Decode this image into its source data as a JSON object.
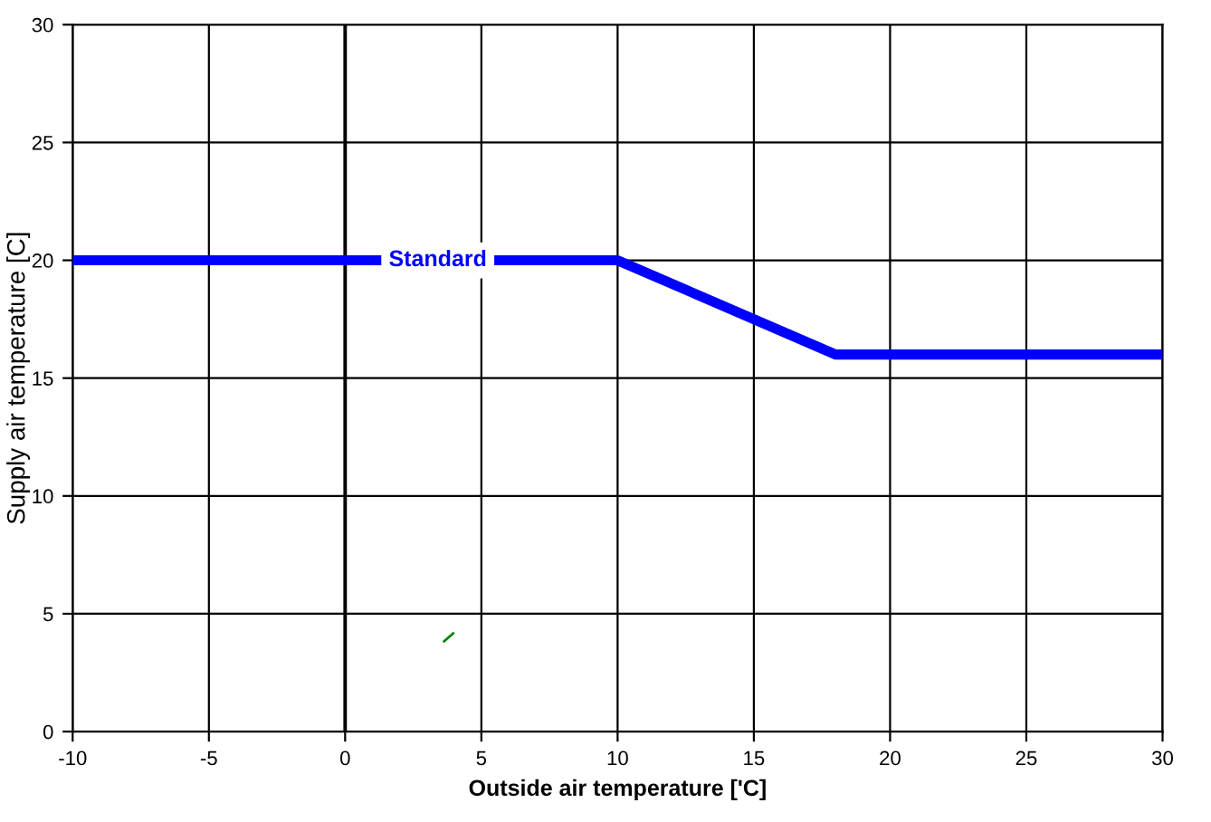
{
  "chart_data": {
    "type": "line",
    "xlabel": "Outside air temperature ['C]",
    "ylabel": "Supply air temperature [C]",
    "series": [
      {
        "x": [
          -10,
          10,
          18,
          30
        ],
        "values": [
          20,
          20,
          16,
          16
        ],
        "color": "#0000ff"
      },
      {
        "x": [
          3.6,
          4.0
        ],
        "values": [
          3.8,
          4.2
        ],
        "color": "#008000"
      }
    ],
    "annotations": [
      {
        "text": "Standard",
        "x": 3.4,
        "y": 20
      }
    ],
    "xlim": [
      -10,
      30
    ],
    "ylim": [
      0,
      30
    ],
    "xticks": [
      -10,
      -5,
      0,
      5,
      10,
      15,
      20,
      25,
      30
    ],
    "yticks": [
      0,
      5,
      10,
      15,
      20,
      25,
      30
    ],
    "grid": true,
    "legend": false
  }
}
